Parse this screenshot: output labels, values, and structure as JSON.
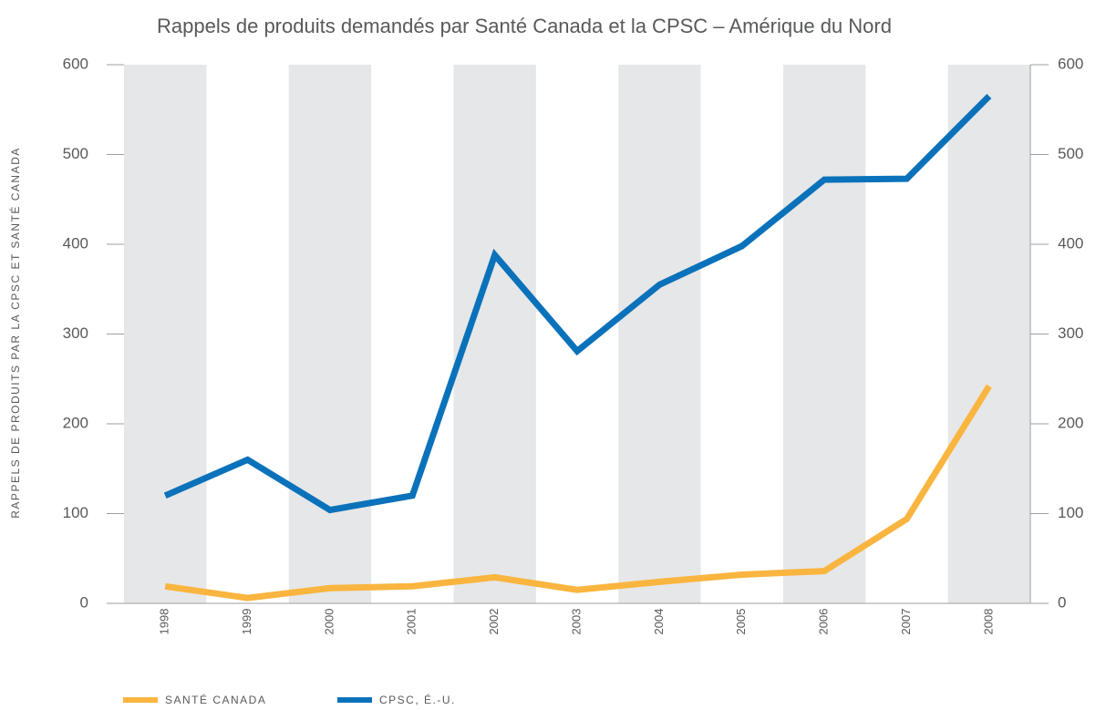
{
  "chart_data": {
    "type": "line",
    "title": "Rappels de produits demandés par Santé Canada et la CPSC – Amérique du Nord",
    "y_label": "RAPPELS DE PRODUITS PAR LA CPSC ET SANTÉ CANADA",
    "categories": [
      "1998",
      "1999",
      "2000",
      "2001",
      "2002",
      "2003",
      "2004",
      "2005",
      "2006",
      "2007",
      "2008"
    ],
    "series": [
      {
        "name": "SANTÉ CANADA",
        "color": "#f9b53f",
        "values": [
          19,
          6,
          17,
          19,
          29,
          15,
          24,
          32,
          36,
          94,
          242
        ]
      },
      {
        "name": "CPSC, É.-U.",
        "color": "#0a72ba",
        "values": [
          120,
          160,
          104,
          120,
          388,
          281,
          355,
          398,
          472,
          473,
          565
        ]
      }
    ],
    "ylim": [
      0,
      600
    ],
    "yticks": [
      0,
      100,
      200,
      300,
      400,
      500,
      600
    ],
    "y2lim": [
      0,
      600
    ],
    "y2ticks": [
      0,
      100,
      200,
      300,
      400,
      500,
      600
    ],
    "band_color": "#e6e7e8"
  }
}
